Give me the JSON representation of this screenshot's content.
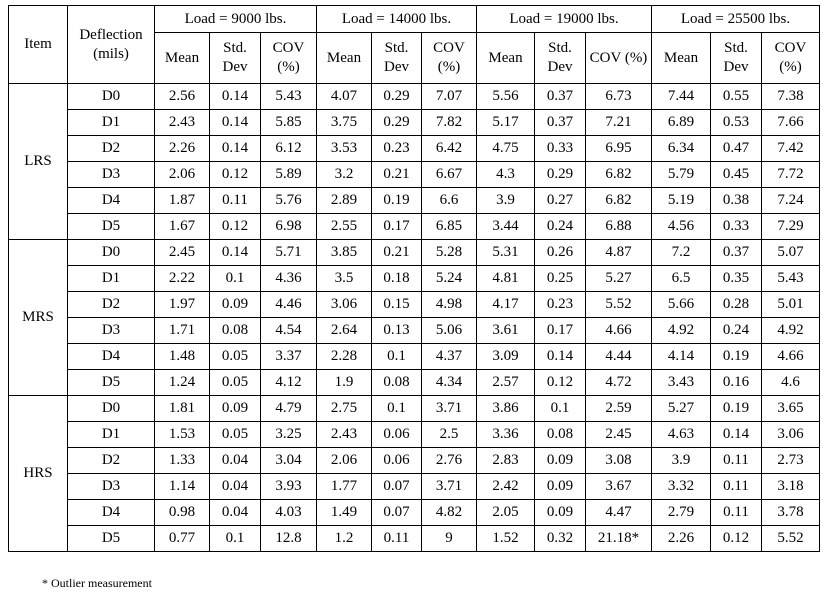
{
  "table": {
    "headers": {
      "item": "Item",
      "deflection": "Deflection (mils)",
      "loads": [
        "Load = 9000 lbs.",
        "Load = 14000 lbs.",
        "Load = 19000 lbs.",
        "Load = 25500 lbs."
      ],
      "stats": [
        "Mean",
        "Std. Dev",
        "COV (%)"
      ]
    },
    "groups": [
      {
        "item": "LRS",
        "rows": [
          {
            "d": "D0",
            "v": [
              "2.56",
              "0.14",
              "5.43",
              "4.07",
              "0.29",
              "7.07",
              "5.56",
              "0.37",
              "6.73",
              "7.44",
              "0.55",
              "7.38"
            ]
          },
          {
            "d": "D1",
            "v": [
              "2.43",
              "0.14",
              "5.85",
              "3.75",
              "0.29",
              "7.82",
              "5.17",
              "0.37",
              "7.21",
              "6.89",
              "0.53",
              "7.66"
            ]
          },
          {
            "d": "D2",
            "v": [
              "2.26",
              "0.14",
              "6.12",
              "3.53",
              "0.23",
              "6.42",
              "4.75",
              "0.33",
              "6.95",
              "6.34",
              "0.47",
              "7.42"
            ]
          },
          {
            "d": "D3",
            "v": [
              "2.06",
              "0.12",
              "5.89",
              "3.2",
              "0.21",
              "6.67",
              "4.3",
              "0.29",
              "6.82",
              "5.79",
              "0.45",
              "7.72"
            ]
          },
          {
            "d": "D4",
            "v": [
              "1.87",
              "0.11",
              "5.76",
              "2.89",
              "0.19",
              "6.6",
              "3.9",
              "0.27",
              "6.82",
              "5.19",
              "0.38",
              "7.24"
            ]
          },
          {
            "d": "D5",
            "v": [
              "1.67",
              "0.12",
              "6.98",
              "2.55",
              "0.17",
              "6.85",
              "3.44",
              "0.24",
              "6.88",
              "4.56",
              "0.33",
              "7.29"
            ]
          }
        ]
      },
      {
        "item": "MRS",
        "rows": [
          {
            "d": "D0",
            "v": [
              "2.45",
              "0.14",
              "5.71",
              "3.85",
              "0.21",
              "5.28",
              "5.31",
              "0.26",
              "4.87",
              "7.2",
              "0.37",
              "5.07"
            ]
          },
          {
            "d": "D1",
            "v": [
              "2.22",
              "0.1",
              "4.36",
              "3.5",
              "0.18",
              "5.24",
              "4.81",
              "0.25",
              "5.27",
              "6.5",
              "0.35",
              "5.43"
            ]
          },
          {
            "d": "D2",
            "v": [
              "1.97",
              "0.09",
              "4.46",
              "3.06",
              "0.15",
              "4.98",
              "4.17",
              "0.23",
              "5.52",
              "5.66",
              "0.28",
              "5.01"
            ]
          },
          {
            "d": "D3",
            "v": [
              "1.71",
              "0.08",
              "4.54",
              "2.64",
              "0.13",
              "5.06",
              "3.61",
              "0.17",
              "4.66",
              "4.92",
              "0.24",
              "4.92"
            ]
          },
          {
            "d": "D4",
            "v": [
              "1.48",
              "0.05",
              "3.37",
              "2.28",
              "0.1",
              "4.37",
              "3.09",
              "0.14",
              "4.44",
              "4.14",
              "0.19",
              "4.66"
            ]
          },
          {
            "d": "D5",
            "v": [
              "1.24",
              "0.05",
              "4.12",
              "1.9",
              "0.08",
              "4.34",
              "2.57",
              "0.12",
              "4.72",
              "3.43",
              "0.16",
              "4.6"
            ]
          }
        ]
      },
      {
        "item": "HRS",
        "rows": [
          {
            "d": "D0",
            "v": [
              "1.81",
              "0.09",
              "4.79",
              "2.75",
              "0.1",
              "3.71",
              "3.86",
              "0.1",
              "2.59",
              "5.27",
              "0.19",
              "3.65"
            ]
          },
          {
            "d": "D1",
            "v": [
              "1.53",
              "0.05",
              "3.25",
              "2.43",
              "0.06",
              "2.5",
              "3.36",
              "0.08",
              "2.45",
              "4.63",
              "0.14",
              "3.06"
            ]
          },
          {
            "d": "D2",
            "v": [
              "1.33",
              "0.04",
              "3.04",
              "2.06",
              "0.06",
              "2.76",
              "2.83",
              "0.09",
              "3.08",
              "3.9",
              "0.11",
              "2.73"
            ]
          },
          {
            "d": "D3",
            "v": [
              "1.14",
              "0.04",
              "3.93",
              "1.77",
              "0.07",
              "3.71",
              "2.42",
              "0.09",
              "3.67",
              "3.32",
              "0.11",
              "3.18"
            ]
          },
          {
            "d": "D4",
            "v": [
              "0.98",
              "0.04",
              "4.03",
              "1.49",
              "0.07",
              "4.82",
              "2.05",
              "0.09",
              "4.47",
              "2.79",
              "0.11",
              "3.78"
            ]
          },
          {
            "d": "D5",
            "v": [
              "0.77",
              "0.1",
              "12.8",
              "1.2",
              "0.11",
              "9",
              "1.52",
              "0.32",
              "21.18*",
              "2.26",
              "0.12",
              "5.52"
            ]
          }
        ]
      }
    ]
  },
  "footnote": "* Outlier measurement"
}
